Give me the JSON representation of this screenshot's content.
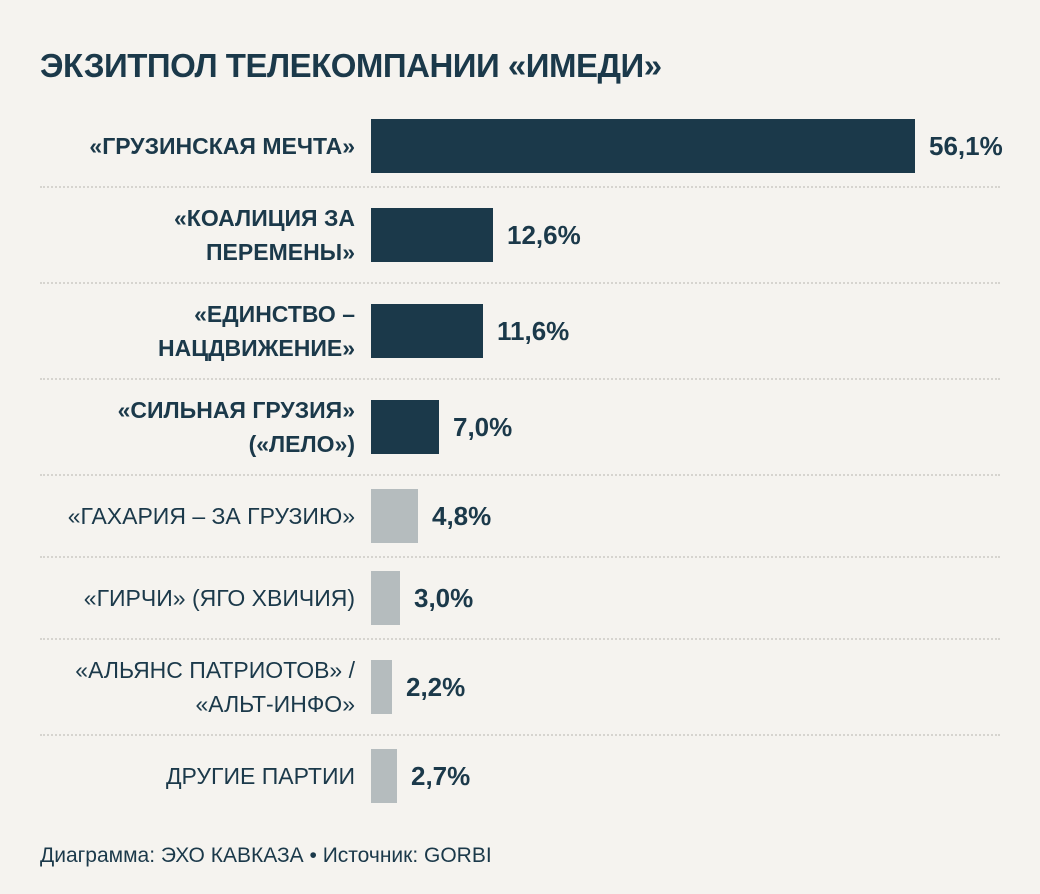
{
  "title": "ЭКЗИТПОЛ ТЕЛЕКОМПАНИИ «ИМЕДИ»",
  "footer": "Диаграмма: ЭХО КАВКАЗА • Источник: GORBI",
  "colors": {
    "background": "#f5f3ef",
    "bar_dark": "#1b394a",
    "bar_gray": "#b5bcbe",
    "text": "#1b394a",
    "separator": "#d6d4cf"
  },
  "chart_data": {
    "type": "bar",
    "orientation": "horizontal",
    "title": "ЭКЗИТПОЛ ТЕЛЕКОМПАНИИ «ИМЕДИ»",
    "xlabel": "",
    "ylabel": "",
    "value_suffix": "%",
    "decimal_separator": ",",
    "axis_max_reference": 56.1,
    "grid": false,
    "legend": false,
    "categories": [
      "«ГРУЗИНСКАЯ МЕЧТА»",
      "«КОАЛИЦИЯ ЗА ПЕРЕМЕНЫ»",
      "«ЕДИНСТВО – НАЦДВИЖЕНИЕ»",
      "«СИЛЬНАЯ ГРУЗИЯ» («ЛЕЛО»)",
      "«ГАХАРИЯ – ЗА ГРУЗИЮ»",
      "«ГИРЧИ» (ЯГО ХВИЧИЯ)",
      "«АЛЬЯНС ПАТРИОТОВ» / «АЛЬТ-ИНФО»",
      "ДРУГИЕ ПАРТИИ"
    ],
    "values": [
      56.1,
      12.6,
      11.6,
      7.0,
      4.8,
      3.0,
      2.2,
      2.7
    ],
    "bars": [
      {
        "label_lines": [
          "«ГРУЗИНСКАЯ МЕЧТА»"
        ],
        "value": 56.1,
        "display_value": "56,1%",
        "emphasized": true
      },
      {
        "label_lines": [
          "«КОАЛИЦИЯ ЗА",
          "ПЕРЕМЕНЫ»"
        ],
        "value": 12.6,
        "display_value": "12,6%",
        "emphasized": true
      },
      {
        "label_lines": [
          "«ЕДИНСТВО –",
          "НАЦДВИЖЕНИЕ»"
        ],
        "value": 11.6,
        "display_value": "11,6%",
        "emphasized": true
      },
      {
        "label_lines": [
          "«СИЛЬНАЯ ГРУЗИЯ»",
          "(«ЛЕЛО»)"
        ],
        "value": 7.0,
        "display_value": "7,0%",
        "emphasized": true
      },
      {
        "label_lines": [
          "«ГАХАРИЯ – ЗА ГРУЗИЮ»"
        ],
        "value": 4.8,
        "display_value": "4,8%",
        "emphasized": false
      },
      {
        "label_lines": [
          "«ГИРЧИ» (ЯГО ХВИЧИЯ)"
        ],
        "value": 3.0,
        "display_value": "3,0%",
        "emphasized": false
      },
      {
        "label_lines": [
          "«АЛЬЯНС ПАТРИОТОВ» /",
          "«АЛЬТ-ИНФО»"
        ],
        "value": 2.2,
        "display_value": "2,2%",
        "emphasized": false
      },
      {
        "label_lines": [
          "ДРУГИЕ ПАРТИИ"
        ],
        "value": 2.7,
        "display_value": "2,7%",
        "emphasized": false
      }
    ]
  }
}
